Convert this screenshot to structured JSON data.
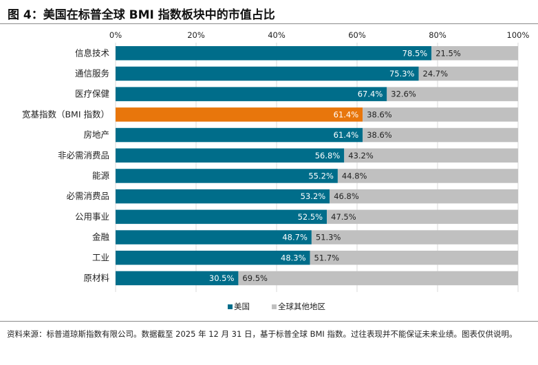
{
  "title": "图 4：美国在标普全球 BMI 指数板块中的市值占比",
  "source_note": "资料来源：标普道琼斯指数有限公司。数据截至 2025 年 12 月 31 日，基于标普全球 BMI 指数。过往表现并不能保证未来业绩。图表仅供说明。",
  "colors": {
    "us": "#006d8a",
    "rest": "#c0c0c0",
    "highlight": "#e8760c"
  },
  "chart_data": {
    "type": "bar",
    "orientation": "horizontal",
    "stacked": true,
    "title": "图 4：美国在标普全球 BMI 指数板块中的市值占比",
    "x_ticks": [
      "0%",
      "20%",
      "40%",
      "60%",
      "80%",
      "100%"
    ],
    "xlim": [
      0,
      100
    ],
    "grid": true,
    "legend_position": "bottom",
    "categories": [
      "信息技术",
      "通信服务",
      "医疗保健",
      "宽基指数（BMI 指数）",
      "房地产",
      "非必需消费品",
      "能源",
      "必需消费品",
      "公用事业",
      "金融",
      "工业",
      "原材料"
    ],
    "highlight_category": "宽基指数（BMI 指数）",
    "series": [
      {
        "name": "美国",
        "values": [
          78.5,
          75.3,
          67.4,
          61.4,
          61.4,
          56.8,
          55.2,
          53.2,
          52.5,
          48.7,
          48.3,
          30.5
        ]
      },
      {
        "name": "全球其他地区",
        "values": [
          21.5,
          24.7,
          32.6,
          38.6,
          38.6,
          43.2,
          44.8,
          46.8,
          47.5,
          51.3,
          51.7,
          69.5
        ]
      }
    ]
  }
}
